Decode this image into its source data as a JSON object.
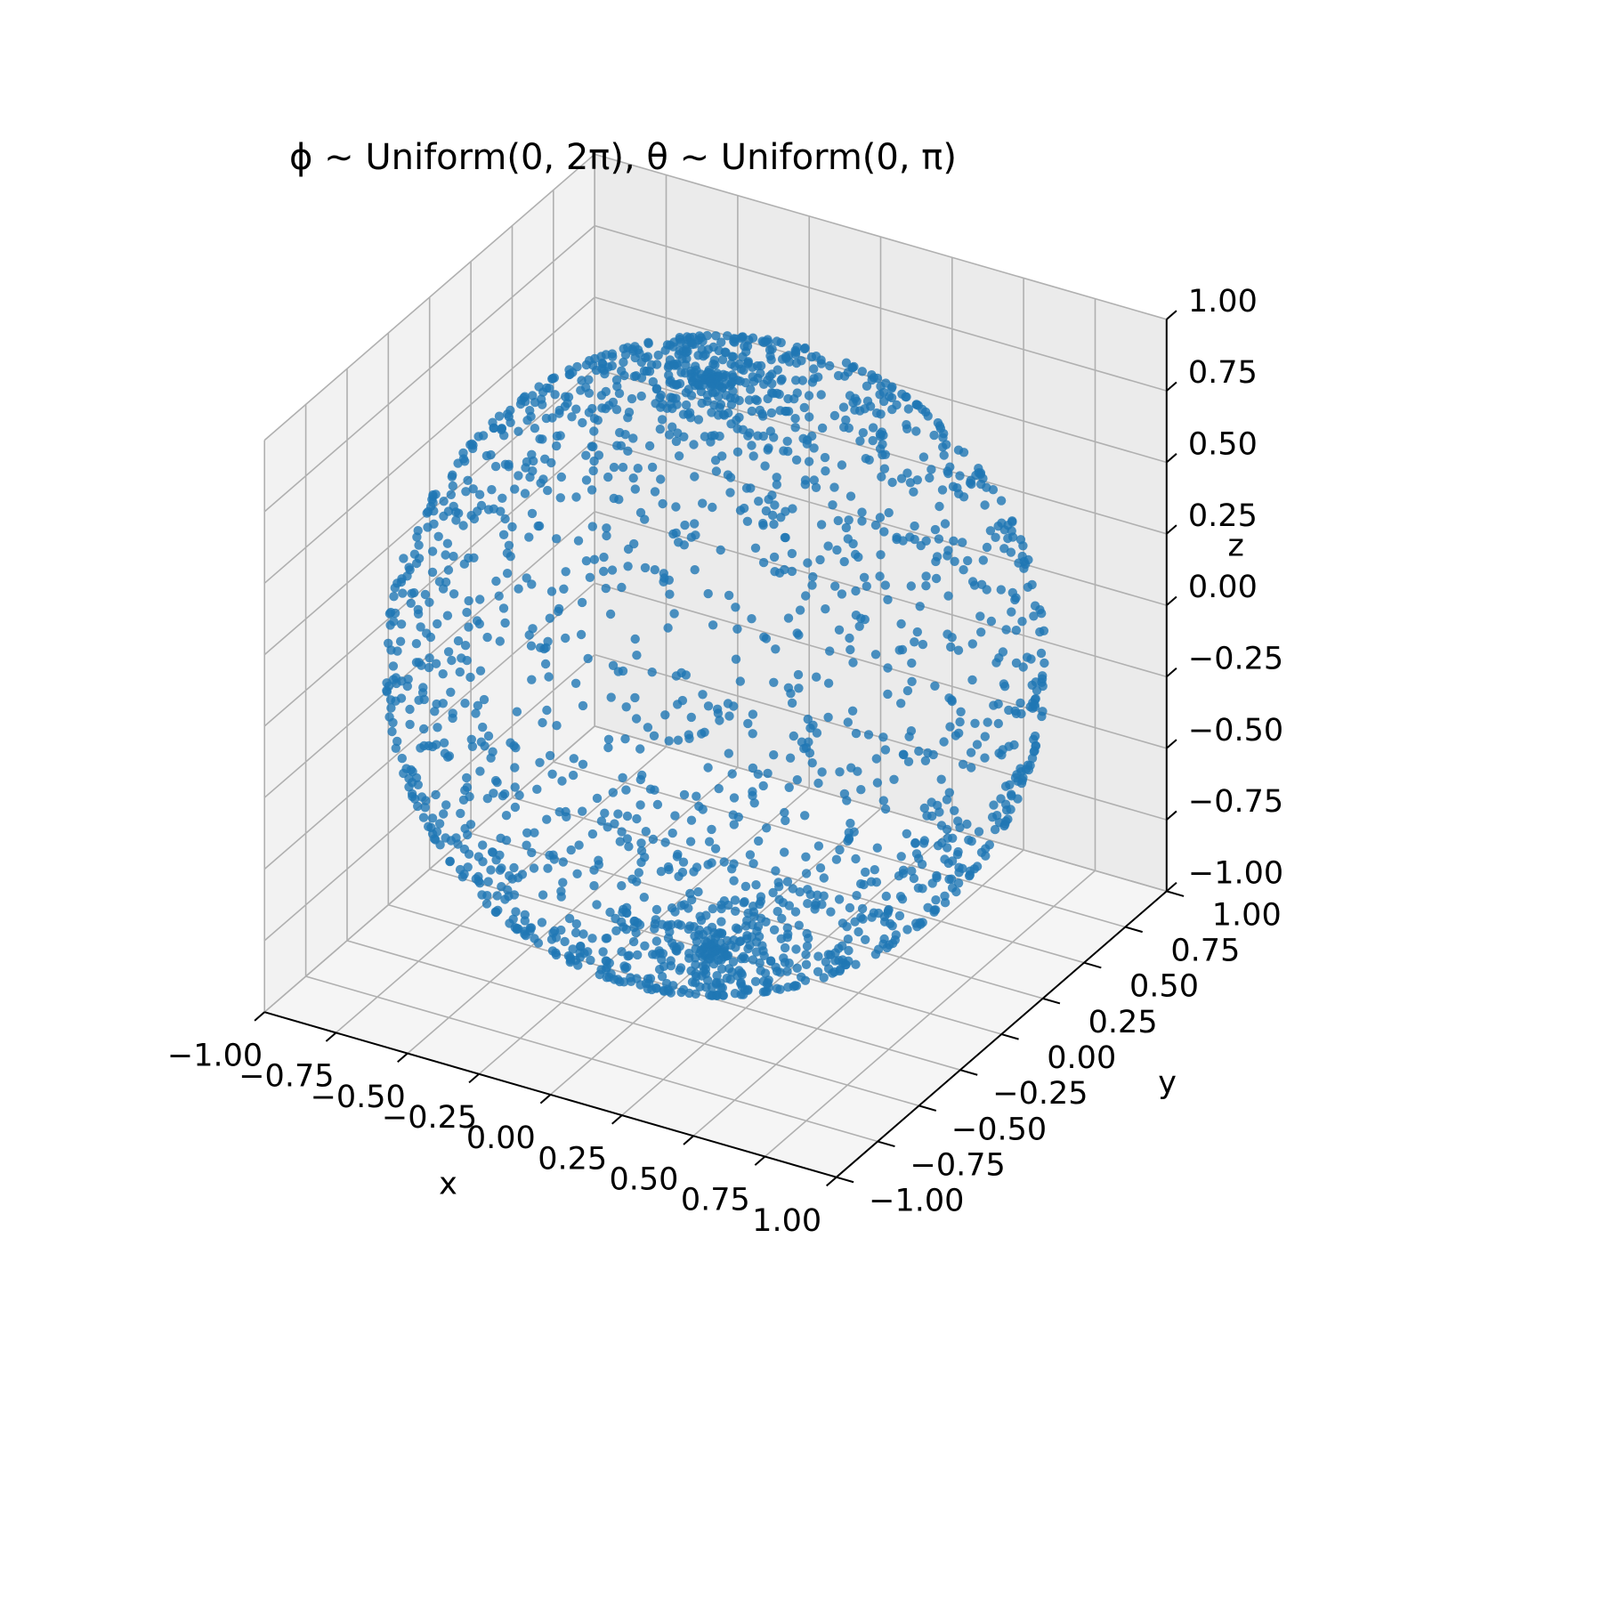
{
  "chart_data": {
    "type": "scatter",
    "projection": "3d",
    "title": "ϕ ∼ Uniform(0, 2π), θ ∼ Uniform(0, π)",
    "xlabel": "x",
    "ylabel": "y",
    "zlabel": "z",
    "xlim": [
      -1.0,
      1.0
    ],
    "ylim": [
      -1.0,
      1.0
    ],
    "zlim": [
      -1.0,
      1.0
    ],
    "xticks": [
      "−1.00",
      "−0.75",
      "−0.50",
      "−0.25",
      "0.00",
      "0.25",
      "0.50",
      "0.75",
      "1.00"
    ],
    "yticks": [
      "−1.00",
      "−0.75",
      "−0.50",
      "−0.25",
      "0.00",
      "0.25",
      "0.50",
      "0.75",
      "1.00"
    ],
    "zticks": [
      "−1.00",
      "−0.75",
      "−0.50",
      "−0.25",
      "0.00",
      "0.25",
      "0.50",
      "0.75",
      "1.00"
    ],
    "grid": true,
    "marker_color": "#1f77b4",
    "marker_alpha": 0.8,
    "series": [
      {
        "distribution": "unit sphere: x = sinθ cosϕ, y = sinθ sinϕ, z = cosθ; ϕ ~ Uniform(0, 2π), θ ~ Uniform(0, π)",
        "n_points": 2000
      }
    ]
  }
}
